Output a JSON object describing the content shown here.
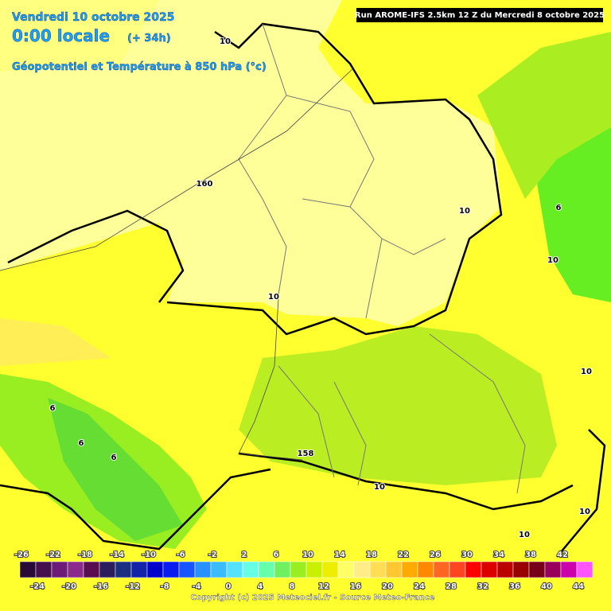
{
  "header": {
    "date": "Vendredi 10 octobre 2025",
    "time": "0:00 locale",
    "offset": "(+ 34h)",
    "title": "Géopotentiel et Température à 850 hPa (°c)",
    "run": "Run AROME-IFS 2.5km 12 Z du Mercredi 8 octobre 2025"
  },
  "map_labels": [
    "10",
    "160",
    "10",
    "10",
    "6",
    "10",
    "10",
    "6",
    "6",
    "6",
    "158",
    "10",
    "10",
    "10"
  ],
  "legend": {
    "ticks": [
      -26,
      -24,
      -22,
      -20,
      -18,
      -16,
      -14,
      -12,
      -10,
      -8,
      -6,
      -4,
      -2,
      0,
      2,
      4,
      6,
      8,
      10,
      12,
      14,
      16,
      18,
      20,
      22,
      24,
      26,
      28,
      30,
      32,
      34,
      36,
      38,
      40,
      42,
      44
    ],
    "colors": [
      "#2a0a36",
      "#46104f",
      "#6a1c77",
      "#8c2a8c",
      "#5a0e50",
      "#2c1d5e",
      "#1b2f80",
      "#1424a8",
      "#0000cc",
      "#0a1cf0",
      "#1655ff",
      "#2890ff",
      "#3cbcff",
      "#55e2ff",
      "#66ffe6",
      "#66ffaa",
      "#70f060",
      "#99ee22",
      "#c8f000",
      "#eeee00",
      "#ffff66",
      "#ffee88",
      "#ffdd55",
      "#ffc833",
      "#ffaa00",
      "#ff8800",
      "#ff6622",
      "#ff4422",
      "#ff0000",
      "#dd0000",
      "#bb0000",
      "#990000",
      "#770018",
      "#99005a",
      "#cc00aa",
      "#ff55ff"
    ]
  },
  "copyright": "Copyright (c) 2025 Meteociel.fr - Source Meteo-France"
}
